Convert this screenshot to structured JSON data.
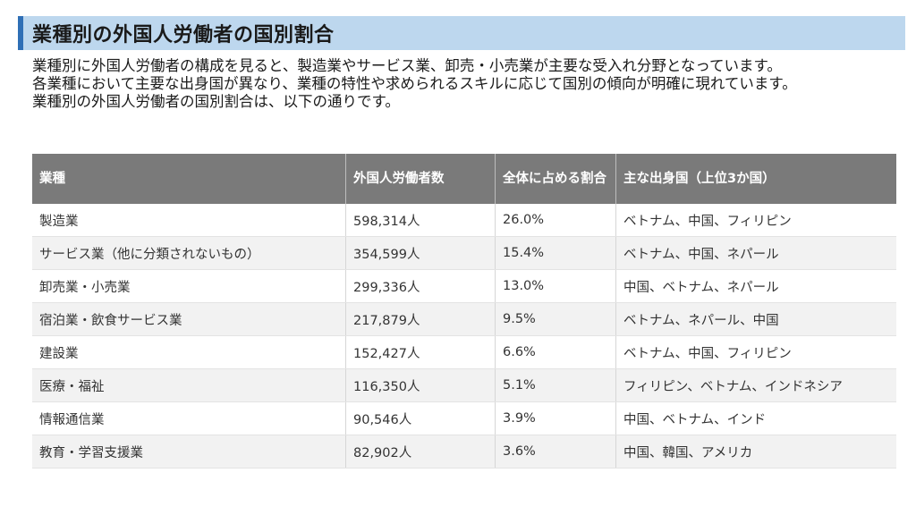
{
  "title": "業種別の外国人労働者の国別割合",
  "intro": {
    "line1": "業種別に外国人労働者の構成を見ると、製造業やサービス業、卸売・小売業が主要な受入れ分野となっています。",
    "line2": "各業種において主要な出身国が異なり、業種の特性や求められるスキルに応じて国別の傾向が明確に現れています。",
    "line3": "業種別の外国人労働者の国別割合は、以下の通りです。"
  },
  "table": {
    "headers": [
      "業種",
      "外国人労働者数",
      "全体に占める割合",
      "主な出身国（上位3か国）"
    ],
    "rows": [
      [
        "製造業",
        "598,314人",
        "26.0%",
        "ベトナム、中国、フィリピン"
      ],
      [
        "サービス業（他に分類されないもの）",
        "354,599人",
        "15.4%",
        "ベトナム、中国、ネパール"
      ],
      [
        "卸売業・小売業",
        "299,336人",
        "13.0%",
        "中国、ベトナム、ネパール"
      ],
      [
        "宿泊業・飲食サービス業",
        "217,879人",
        "9.5%",
        "ベトナム、ネパール、中国"
      ],
      [
        "建設業",
        "152,427人",
        "6.6%",
        "ベトナム、中国、フィリピン"
      ],
      [
        "医療・福祉",
        "116,350人",
        "5.1%",
        "フィリピン、ベトナム、インドネシア"
      ],
      [
        "情報通信業",
        "90,546人",
        "3.9%",
        "中国、ベトナム、インド"
      ],
      [
        "教育・学習支援業",
        "82,902人",
        "3.6%",
        "中国、韓国、アメリカ"
      ]
    ]
  },
  "colors": {
    "title_band": "#bdd7ee",
    "title_accent": "#2f6fb6",
    "header_bg": "#7a7a7a",
    "row_alt": "#f2f2f2"
  }
}
